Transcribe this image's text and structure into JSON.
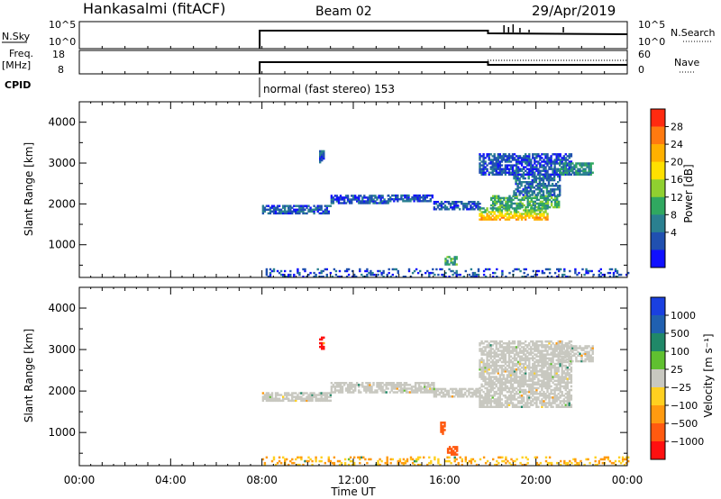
{
  "header": {
    "station": "Hankasalmi (fitACF)",
    "beam": "Beam 02",
    "date": "29/Apr/2019"
  },
  "strip_nsky": {
    "left_label": "N.Sky",
    "right_label": "N.Search",
    "left_ticks": [
      "10^5",
      "10^0"
    ],
    "right_ticks": [
      "10^5",
      "10^0"
    ]
  },
  "strip_freq": {
    "left_label_1": "Freq.",
    "left_label_2": "[MHz]",
    "right_label": "Nave",
    "left_ticks": [
      "18",
      "8"
    ],
    "right_ticks": [
      "60",
      "0"
    ]
  },
  "cpid": {
    "label": "CPID",
    "mode_text": "normal (fast stereo) 153"
  },
  "colorbars": {
    "power": {
      "title": "Power [dB]",
      "labels": [
        "28",
        "24",
        "20",
        "16",
        "12",
        "8",
        "4"
      ],
      "colors": [
        "#ff2a10",
        "#ff7a10",
        "#ffb000",
        "#ffe000",
        "#90d030",
        "#30a860",
        "#2a8090",
        "#2050b0",
        "#1010ff"
      ]
    },
    "velocity": {
      "title": "Velocity [m s⁻¹]",
      "labels": [
        "1000",
        "500",
        "100",
        "25",
        "−25",
        "−100",
        "−500",
        "−1000"
      ],
      "colors": [
        "#1a40e0",
        "#2060b0",
        "#208868",
        "#60c030",
        "#c8c8c0",
        "#ffd020",
        "#ff9a10",
        "#ff5a10",
        "#ff1010"
      ]
    }
  },
  "chart_data": [
    {
      "type": "heatmap",
      "name": "power",
      "xlabel": "",
      "ylabel": "Slant Range [km]",
      "xlim": [
        0,
        24
      ],
      "ylim": [
        200,
        4500
      ],
      "yticks": [
        1000,
        2000,
        3000,
        4000
      ],
      "colorbar": "Power [dB]",
      "regions": [
        {
          "t0": 8.0,
          "t1": 11.0,
          "r0": 1750,
          "r1": 1950,
          "level": 6
        },
        {
          "t0": 11.0,
          "t1": 13.5,
          "r0": 2000,
          "r1": 2200,
          "level": 5
        },
        {
          "t0": 13.5,
          "t1": 15.5,
          "r0": 2050,
          "r1": 2200,
          "level": 5
        },
        {
          "t0": 15.5,
          "t1": 17.5,
          "r0": 1850,
          "r1": 2050,
          "level": 6
        },
        {
          "t0": 17.5,
          "t1": 20.5,
          "r0": 1600,
          "r1": 1900,
          "level": 25
        },
        {
          "t0": 18.0,
          "t1": 21.0,
          "r0": 1900,
          "r1": 2200,
          "level": 12
        },
        {
          "t0": 19.0,
          "t1": 21.0,
          "r0": 2200,
          "r1": 2700,
          "level": 7
        },
        {
          "t0": 17.5,
          "t1": 21.5,
          "r0": 2700,
          "r1": 3200,
          "level": 5
        },
        {
          "t0": 21.0,
          "t1": 22.5,
          "r0": 2700,
          "r1": 3000,
          "level": 10
        },
        {
          "t0": 16.0,
          "t1": 16.5,
          "r0": 500,
          "r1": 700,
          "level": 12
        },
        {
          "t0": 10.5,
          "t1": 10.7,
          "r0": 3000,
          "r1": 3300,
          "level": 6
        },
        {
          "t0": 8.0,
          "t1": 24.0,
          "r0": 200,
          "r1": 400,
          "level": 5
        }
      ]
    },
    {
      "type": "heatmap",
      "name": "velocity",
      "xlabel": "Time UT",
      "ylabel": "Slant Range [km]",
      "xlim": [
        0,
        24
      ],
      "ylim": [
        200,
        4500
      ],
      "yticks": [
        1000,
        2000,
        3000,
        4000
      ],
      "xticks": [
        "00:00",
        "04:00",
        "08:00",
        "12:00",
        "16:00",
        "20:00",
        "00:00"
      ],
      "colorbar": "Velocity [m s-1]",
      "regions": [
        {
          "t0": 8.0,
          "t1": 11.0,
          "r0": 1750,
          "r1": 1950,
          "velocity": 0
        },
        {
          "t0": 11.0,
          "t1": 15.5,
          "r0": 1950,
          "r1": 2200,
          "velocity": 0
        },
        {
          "t0": 15.5,
          "t1": 17.5,
          "r0": 1850,
          "r1": 2050,
          "velocity": 0
        },
        {
          "t0": 17.5,
          "t1": 21.5,
          "r0": 1600,
          "r1": 3200,
          "velocity": 0
        },
        {
          "t0": 21.0,
          "t1": 22.5,
          "r0": 2700,
          "r1": 3100,
          "velocity": 0
        },
        {
          "t0": 16.1,
          "t1": 16.5,
          "r0": 450,
          "r1": 650,
          "velocity": -500
        },
        {
          "t0": 10.5,
          "t1": 10.7,
          "r0": 3000,
          "r1": 3300,
          "velocity": -1000
        },
        {
          "t0": 15.8,
          "t1": 16.0,
          "r0": 950,
          "r1": 1250,
          "velocity": -500
        },
        {
          "t0": 8.0,
          "t1": 24.0,
          "r0": 200,
          "r1": 400,
          "velocity": -100
        }
      ]
    }
  ]
}
